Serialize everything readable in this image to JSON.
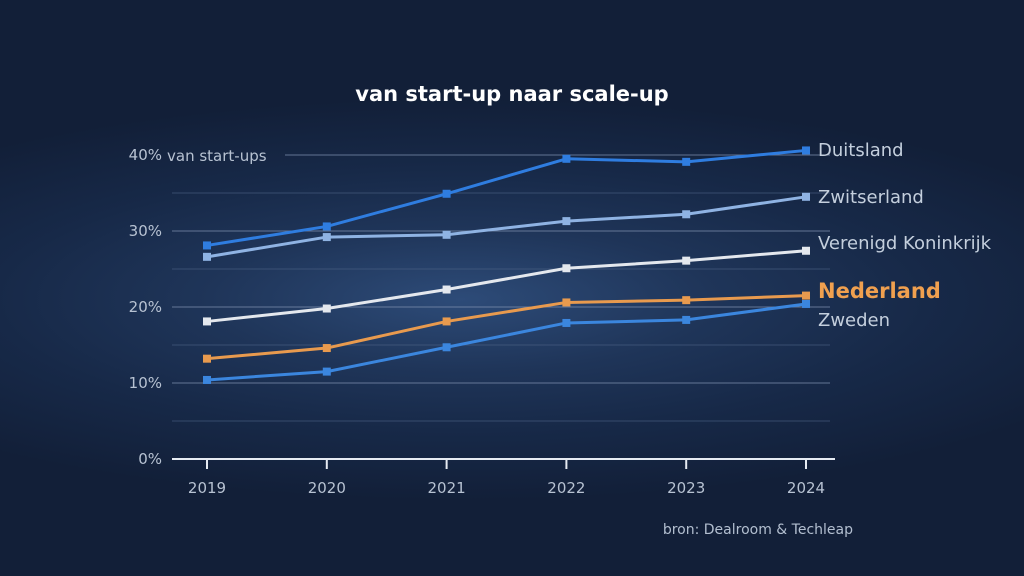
{
  "chart_data": {
    "type": "line",
    "title": "van start-up naar scale-up",
    "ylabel": "van start-ups",
    "source": "bron: Dealroom & Techleap",
    "x": [
      "2019",
      "2020",
      "2021",
      "2022",
      "2023",
      "2024"
    ],
    "ylim": [
      0,
      40
    ],
    "yticks": [
      0,
      10,
      20,
      30,
      40
    ],
    "ytick_labels": [
      "0%",
      "10%",
      "20%",
      "30%",
      "40%"
    ],
    "grid": true,
    "series": [
      {
        "name": "Duitsland",
        "color": "#2f7de0",
        "label_color": "#c4cfdd",
        "highlight": false,
        "values": [
          28.1,
          30.6,
          34.9,
          39.5,
          39.1,
          40.6
        ]
      },
      {
        "name": "Zwitserland",
        "color": "#8fb3e3",
        "label_color": "#c4cfdd",
        "highlight": false,
        "values": [
          26.6,
          29.2,
          29.5,
          31.3,
          32.2,
          34.5
        ]
      },
      {
        "name": "Verenigd Koninkrijk",
        "color": "#e4e8ee",
        "label_color": "#c4cfdd",
        "highlight": false,
        "values": [
          18.1,
          19.8,
          22.3,
          25.1,
          26.1,
          27.4
        ]
      },
      {
        "name": "Nederland",
        "color": "#e89a4e",
        "label_color": "#f0a04f",
        "highlight": true,
        "values": [
          13.2,
          14.6,
          18.1,
          20.6,
          20.9,
          21.5
        ]
      },
      {
        "name": "Zweden",
        "color": "#3b86de",
        "label_color": "#c4cfdd",
        "highlight": false,
        "values": [
          10.4,
          11.5,
          14.7,
          17.9,
          18.3,
          20.4
        ]
      }
    ]
  }
}
